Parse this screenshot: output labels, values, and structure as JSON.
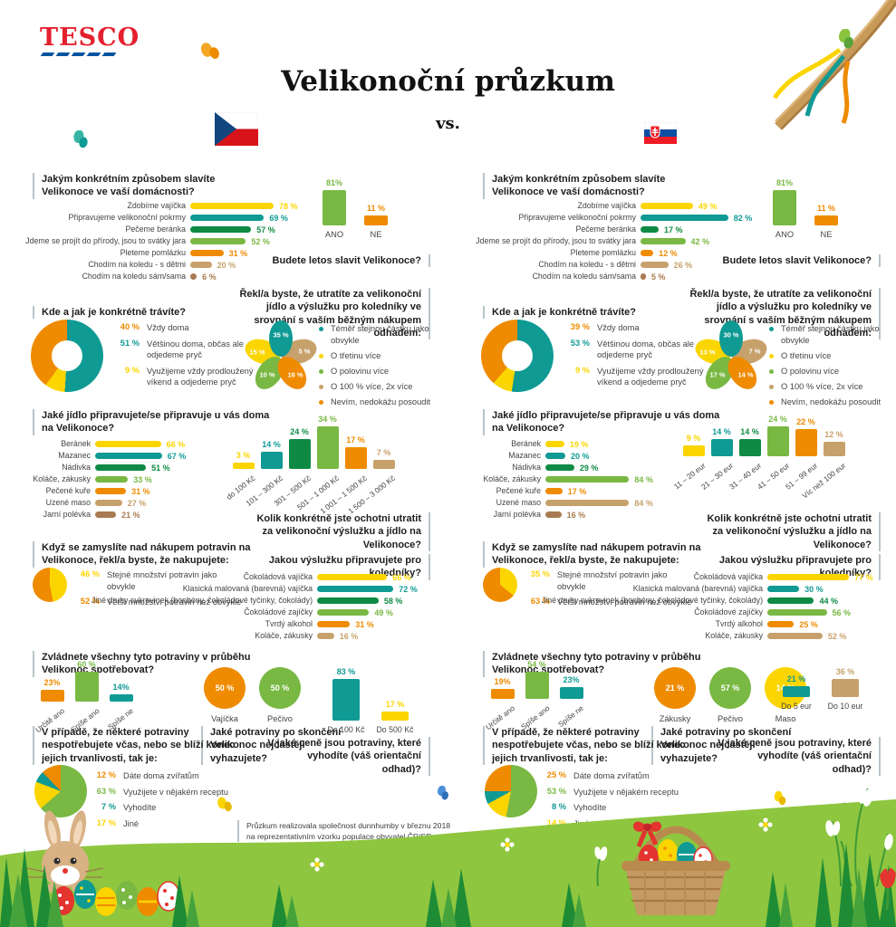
{
  "header": {
    "brand": "TESCO",
    "title": "Velikonoční průzkum",
    "vs": "vs.",
    "flags": {
      "left": "Česká republika",
      "right": "Slovensko"
    }
  },
  "palette": {
    "yellow": "#fbd500",
    "teal": "#0f9a94",
    "dgreen": "#0e8a44",
    "green": "#79b843",
    "orange": "#ef8b00",
    "tan": "#c7a16b",
    "brown": "#a87b50",
    "text": "#1d1d1b",
    "label": "#444444",
    "line": "#b9c4c9",
    "tesco_red": "#e5202e",
    "tesco_blue": "#00539f",
    "grass_light": "#8ec63f",
    "grass_dark": "#1e8c35"
  },
  "chart_data": {
    "types": {
      "q1": "bar",
      "ano_ne": "bar",
      "where": "donut",
      "flower": "pie",
      "food": "bar",
      "money": "bar",
      "buy": "pie",
      "treats": "bar",
      "consume": "bar",
      "throw": "circles",
      "waste": "bar",
      "leftover": "pie"
    },
    "shared": {
      "q1_title": "Jakým konkrétním způsobem slavíte Velikonoce ve vaší domácnosti?",
      "q1_labels": [
        "Zdobíme vajíčka",
        "Připravujeme velikonoční pokrmy",
        "Pečeme beránka",
        "Jdeme se projít do přírody, jsou to svátky jara",
        "Pleteme pomlázku",
        "Chodím na koledu - s dětmi",
        "Chodím na koledu sám/sama"
      ],
      "row7": [
        "yellow",
        "teal",
        "dgreen",
        "green",
        "orange",
        "tan",
        "brown"
      ],
      "ano_label": "ANO",
      "ne_label": "NE",
      "ano_color": "green",
      "ne_color": "orange",
      "ano_ne_question": "Budete letos slavit Velikonoce?",
      "where_title": "Kde a jak je konkrétně trávíte?",
      "where_legend": [
        "Vždy doma",
        "Většinou doma, občas ale odjedeme pryč",
        "Využijeme vždy prodloužený víkend a odjedeme pryč"
      ],
      "where_colors": [
        "orange",
        "teal",
        "yellow"
      ],
      "flower_title": "Řekl/a byste, že utratíte za velikonoční jídlo a výslužku pro koledníky ve srovnání s vaším běžným nákupem odhadem:",
      "flower_legend": [
        "Téměř stejnou částku jako obvykle",
        "O třetinu více",
        "O polovinu více",
        "O 100 % více, 2x více",
        "Nevím, nedokážu posoudit"
      ],
      "flower_colors": [
        "teal",
        "yellow",
        "tan",
        "green",
        "orange"
      ],
      "food_title": "Jaké jídlo připravujete/se připravuje u vás doma na Velikonoce?",
      "food_labels": [
        "Beránek",
        "Mazanec",
        "Nádivka",
        "Koláče, zákusky",
        "Pečené kuře",
        "Uzené maso",
        "Jarní polévka"
      ],
      "money_caption": "Kolik konkrétně jste ochotni utratit za velikonoční výslužku a jídlo na Velikonoce?",
      "money_colors": [
        "yellow",
        "teal",
        "dgreen",
        "green",
        "orange",
        "tan"
      ],
      "buy_title": "Když se zamyslíte nad nákupem potravin na Velikonoce, řekl/a byste, že nakupujete:",
      "buy_legend": [
        "Stejné množství potravin jako obvykle",
        "Větší množství potravin než obvykle"
      ],
      "buy_colors": [
        "yellow",
        "orange"
      ],
      "treats_title": "Jakou výslužku připravujete pro koledníky?",
      "treats_labels": [
        "Čokoládová vajíčka",
        "Klasická malovaná (barevná) vajíčka",
        "Jiné druhy cukrovinek (bonbóny, čokoládové tyčinky, čokolády)",
        "Čokoládové zajíčky",
        "Tvrdý alkohol",
        "Koláče, zákusky"
      ],
      "treats_colors": [
        "yellow",
        "teal",
        "dgreen",
        "green",
        "orange",
        "tan"
      ],
      "consume_title": "Zvládnete všechny tyto potraviny v průběhu Velikonoc spotřebovat?",
      "consume_labels": [
        "Určitě ano",
        "Spíše ano",
        "Spíše ne"
      ],
      "consume_colors": [
        "orange",
        "green",
        "teal"
      ],
      "throw_title": "Jaké potraviny po skončení Velikonoc nejčastěji vyhazujete?",
      "waste_title": "V jaké ceně jsou potraviny, které vyhodíte (váš orientační odhad)?",
      "leftover_title": "V případě, že některé potraviny nespotřebujete včas, nebo se blíží konec jejich trvanlivosti, tak je:",
      "leftover_labels": [
        "Dáte doma zvířatům",
        "Využijete v nějakém receptu",
        "Vyhodíte",
        "Jiné"
      ],
      "leftover_colors": [
        "orange",
        "green",
        "teal",
        "yellow"
      ]
    },
    "cz": {
      "country": "Česká republika",
      "q1_values": [
        78,
        69,
        57,
        52,
        31,
        20,
        6
      ],
      "q1_texts": [
        "78 %",
        "69 %",
        "57 %",
        "52 %",
        "31 %",
        "20 %",
        "6 %"
      ],
      "ano_v": 81,
      "ano_t": "81%",
      "ne_v": 11,
      "ne_t": "11 %",
      "where_values": [
        40,
        51,
        9
      ],
      "where_texts": [
        "40 %",
        "51 %",
        "9 %"
      ],
      "where_slices": [
        {
          "v": 51,
          "c": "teal"
        },
        {
          "v": 9,
          "c": "yellow"
        },
        {
          "v": 40,
          "c": "orange"
        }
      ],
      "flower_values": [
        35,
        15,
        5,
        10,
        16
      ],
      "flower_texts": [
        "35 %",
        "15 %",
        "5 %",
        "10 %",
        "16 %"
      ],
      "food_values": [
        66,
        67,
        51,
        33,
        31,
        27,
        21
      ],
      "food_texts": [
        "66 %",
        "67 %",
        "51 %",
        "33 %",
        "31 %",
        "27 %",
        "21 %"
      ],
      "money_cats": [
        "do 100 Kč",
        "101 – 300 Kč",
        "301 – 500 Kč",
        "501 – 1 000 Kč",
        "1 001 – 1 500 Kč",
        "1 500 – 3 000 Kč"
      ],
      "money_values": [
        3,
        14,
        24,
        34,
        17,
        7
      ],
      "money_texts": [
        "3 %",
        "14 %",
        "24 %",
        "34 %",
        "17 %",
        "7 %"
      ],
      "buy_values": [
        46,
        52
      ],
      "buy_texts": [
        "46 %",
        "52 %"
      ],
      "buy_slices": [
        {
          "v": 46,
          "c": "yellow"
        },
        {
          "v": 52,
          "c": "orange"
        }
      ],
      "treats_values": [
        66,
        72,
        58,
        49,
        31,
        16
      ],
      "treats_texts": [
        "66 %",
        "72 %",
        "58 %",
        "49 %",
        "31 %",
        "16 %"
      ],
      "consume_values": [
        23,
        60,
        14
      ],
      "consume_texts": [
        "23%",
        "60 %",
        "14%"
      ],
      "circles": [
        {
          "label": "Vajíčka",
          "v": 50,
          "t": "50 %",
          "c": "orange"
        },
        {
          "label": "Pečivo",
          "v": 50,
          "t": "50 %",
          "c": "green"
        }
      ],
      "waste": [
        {
          "label": "Do 100 Kč",
          "v": 83,
          "t": "83 %",
          "c": "teal"
        },
        {
          "label": "Do 500 Kč",
          "v": 17,
          "t": "17 %",
          "c": "yellow"
        }
      ],
      "leftover_values": [
        12,
        63,
        7,
        17
      ],
      "leftover_texts": [
        "12 %",
        "63 %",
        "7 %",
        "17 %"
      ],
      "leftover_slices": [
        {
          "v": 63,
          "c": "green"
        },
        {
          "v": 17,
          "c": "yellow"
        },
        {
          "v": 7,
          "c": "teal"
        },
        {
          "v": 12,
          "c": "orange"
        }
      ]
    },
    "sk": {
      "country": "Slovensko",
      "q1_values": [
        49,
        82,
        17,
        42,
        12,
        26,
        5
      ],
      "q1_texts": [
        "49 %",
        "82 %",
        "17 %",
        "42 %",
        "12 %",
        "26 %",
        "5 %"
      ],
      "ano_v": 81,
      "ano_t": "81%",
      "ne_v": 11,
      "ne_t": "11 %",
      "where_values": [
        39,
        53,
        9
      ],
      "where_texts": [
        "39 %",
        "53 %",
        "9 %"
      ],
      "where_slices": [
        {
          "v": 53,
          "c": "teal"
        },
        {
          "v": 9,
          "c": "yellow"
        },
        {
          "v": 39,
          "c": "orange"
        }
      ],
      "flower_values": [
        30,
        13,
        7,
        17,
        14
      ],
      "flower_texts": [
        "30 %",
        "13 %",
        "7 %",
        "17 %",
        "14 %"
      ],
      "food_values": [
        19,
        20,
        29,
        84,
        17,
        84,
        16
      ],
      "food_texts": [
        "19 %",
        "20 %",
        "29 %",
        "84 %",
        "17 %",
        "84 %",
        "16 %"
      ],
      "money_cats": [
        "11 – 20 eur",
        "21 – 30 eur",
        "31 – 40 eur",
        "41 – 50 eur",
        "51 – 99 eur",
        "Víc než 100 eur"
      ],
      "money_values": [
        9,
        14,
        14,
        24,
        22,
        12
      ],
      "money_texts": [
        "9 %",
        "14 %",
        "14 %",
        "24 %",
        "22 %",
        "12 %"
      ],
      "buy_values": [
        35,
        63
      ],
      "buy_texts": [
        "35 %",
        "63 %"
      ],
      "buy_slices": [
        {
          "v": 35,
          "c": "yellow"
        },
        {
          "v": 63,
          "c": "orange"
        }
      ],
      "treats_values": [
        77,
        30,
        44,
        56,
        25,
        52
      ],
      "treats_texts": [
        "77 %",
        "30 %",
        "44 %",
        "56 %",
        "25 %",
        "52 %"
      ],
      "consume_values": [
        19,
        54,
        23
      ],
      "consume_texts": [
        "19%",
        "54 %",
        "23%"
      ],
      "circles": [
        {
          "label": "Zákusky",
          "v": 21,
          "t": "21 %",
          "c": "orange"
        },
        {
          "label": "Pečivo",
          "v": 57,
          "t": "57 %",
          "c": "green"
        },
        {
          "label": "Maso",
          "v": 14,
          "t": "14 %",
          "c": "yellow"
        }
      ],
      "waste": [
        {
          "label": "Do 5 eur",
          "v": 21,
          "t": "21 %",
          "c": "teal"
        },
        {
          "label": "Do 10 eur",
          "v": 36,
          "t": "36 %",
          "c": "tan"
        }
      ],
      "leftover_values": [
        25,
        53,
        8,
        14
      ],
      "leftover_texts": [
        "25 %",
        "53 %",
        "8 %",
        "14 %"
      ],
      "leftover_slices": [
        {
          "v": 53,
          "c": "green"
        },
        {
          "v": 14,
          "c": "yellow"
        },
        {
          "v": 8,
          "c": "teal"
        },
        {
          "v": 25,
          "c": "orange"
        }
      ]
    }
  },
  "footnote": {
    "line1": "Průzkum realizovala společnost dunnhumby v březnu 2018",
    "line2": "na reprezentativním vzorku populace obyvatel ČR/SR"
  }
}
